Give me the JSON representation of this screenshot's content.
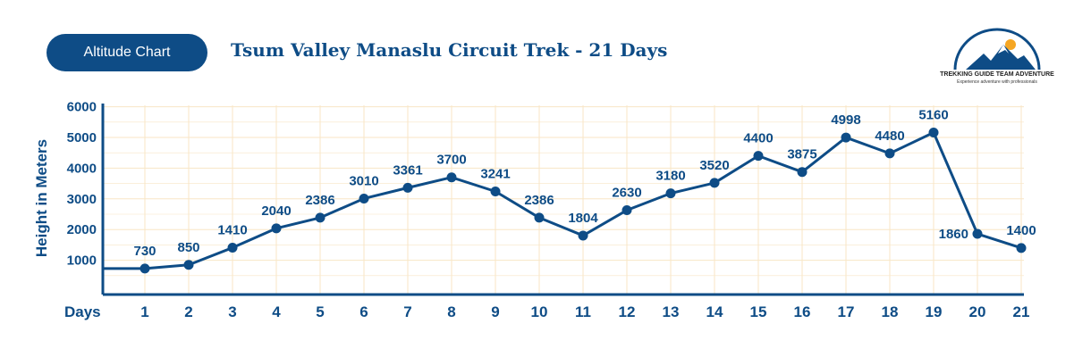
{
  "header": {
    "badge": "Altitude Chart",
    "title": "Tsum Valley Manaslu Circuit Trek - 21 Days"
  },
  "logo": {
    "name": "TREKKING GUIDE TEAM ADVENTURE",
    "tagline": "Experience adventure with professionals"
  },
  "colors": {
    "primary": "#0e4c86",
    "grid": "#f8e6c6"
  },
  "chart_data": {
    "type": "line",
    "title": "Tsum Valley Manaslu Circuit Trek - 21 Days",
    "xlabel": "Days",
    "ylabel": "Height in Meters",
    "categories": [
      "1",
      "2",
      "3",
      "4",
      "5",
      "6",
      "7",
      "8",
      "9",
      "10",
      "11",
      "12",
      "13",
      "14",
      "15",
      "16",
      "17",
      "18",
      "19",
      "20",
      "21"
    ],
    "values": [
      730,
      850,
      1410,
      2040,
      2386,
      3010,
      3361,
      3700,
      3241,
      2386,
      1804,
      2630,
      3180,
      3520,
      4400,
      3875,
      4998,
      4480,
      5160,
      1860,
      1400
    ],
    "y_ticks": [
      "1000",
      "2000",
      "3000",
      "4000",
      "5000",
      "6000"
    ],
    "ylim": [
      0,
      6000
    ],
    "grid": true,
    "legend": "none"
  }
}
